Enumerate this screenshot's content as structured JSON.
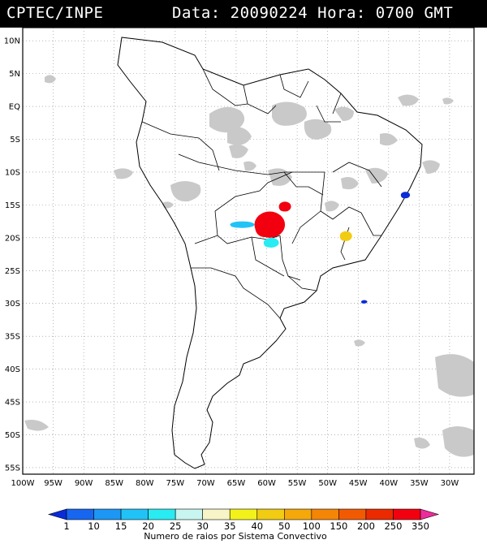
{
  "header": {
    "source": "CPTEC/INPE",
    "date_label": "Data:",
    "date_value": "20090224",
    "time_label": "Hora:",
    "time_value": "0700 GMT"
  },
  "axes": {
    "lat_labels": [
      "10N",
      "5N",
      "EQ",
      "5S",
      "10S",
      "15S",
      "20S",
      "25S",
      "30S",
      "35S",
      "40S",
      "45S",
      "50S",
      "55S"
    ],
    "lon_labels": [
      "100W",
      "95W",
      "90W",
      "85W",
      "80W",
      "75W",
      "70W",
      "65W",
      "60W",
      "55W",
      "50W",
      "45W",
      "40W",
      "35W",
      "30W"
    ],
    "grid": "dotted"
  },
  "legend": {
    "title": "Numero de raios por Sistema Convectivo",
    "values": [
      "1",
      "10",
      "15",
      "20",
      "25",
      "30",
      "35",
      "40",
      "50",
      "100",
      "150",
      "200",
      "250",
      "350"
    ],
    "colors": [
      "#0a2bd8",
      "#1766f0",
      "#1c97f5",
      "#21c3f7",
      "#28ecf2",
      "#c8f5ef",
      "#f7f5c7",
      "#f2f21a",
      "#f2cc12",
      "#f5a80a",
      "#f58505",
      "#f25a02",
      "#ec2a00",
      "#f2000f",
      "#ee2b9a"
    ]
  },
  "clusters": [
    {
      "lon_range": [
        -58,
        -56
      ],
      "lat_range": [
        -16,
        -14.5
      ],
      "count": "350",
      "color": "#f2000f"
    },
    {
      "lon_range": [
        -62,
        -57
      ],
      "lat_range": [
        -20,
        -16
      ],
      "count": "350",
      "color": "#f2000f"
    },
    {
      "lon_range": [
        -60.5,
        -58
      ],
      "lat_range": [
        -21.5,
        -20
      ],
      "count": "30",
      "color": "#28ecf2"
    },
    {
      "lon_range": [
        -66,
        -62
      ],
      "lat_range": [
        -18.5,
        -17.5
      ],
      "count": "25",
      "color": "#21c3f7"
    },
    {
      "lon_range": [
        -48,
        -46
      ],
      "lat_range": [
        -20.5,
        -19
      ],
      "count": "100",
      "color": "#f2cc12"
    },
    {
      "lon_range": [
        -38,
        -36.5
      ],
      "lat_range": [
        -14,
        -13
      ],
      "count": "1",
      "color": "#0a2bd8"
    },
    {
      "lon_range": [
        -44.5,
        -43.5
      ],
      "lat_range": [
        -30,
        -29.5
      ],
      "count": "1",
      "color": "#0a2bd8"
    }
  ]
}
